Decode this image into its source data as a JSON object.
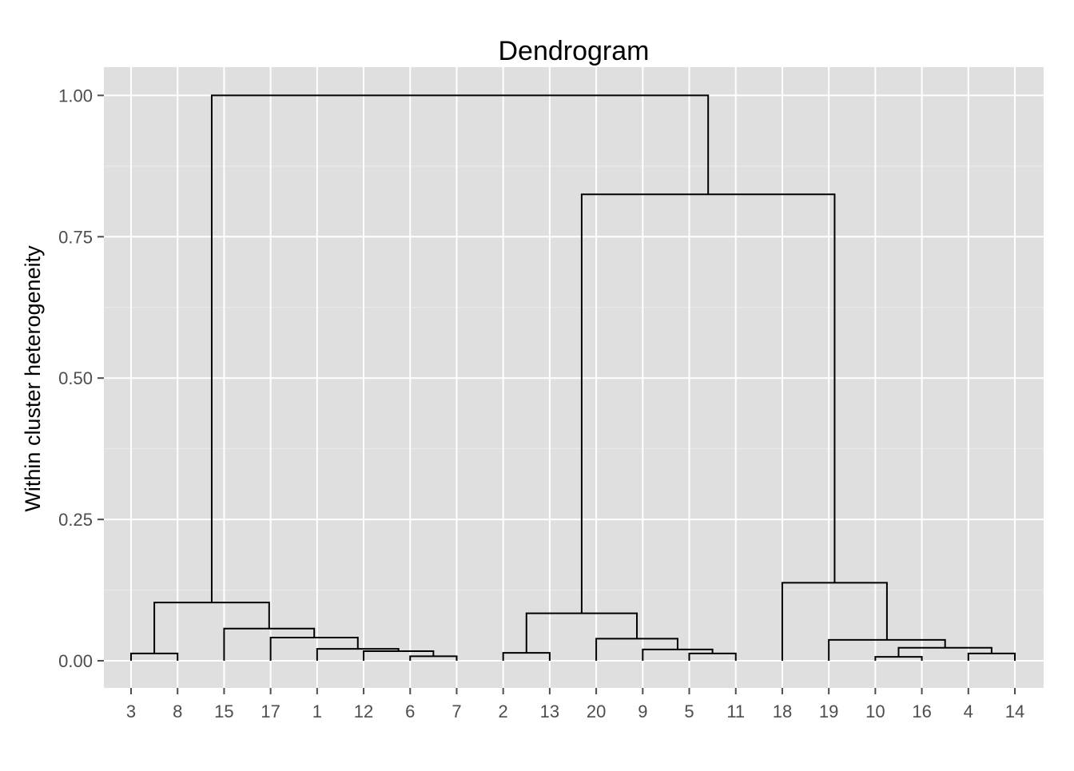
{
  "chart_data": {
    "type": "dendrogram",
    "title": "Dendrogram",
    "xlabel": "",
    "ylabel": "Within cluster heterogeneity",
    "ylim": [
      -0.048,
      1.05
    ],
    "yticks": [
      0.0,
      0.25,
      0.5,
      0.75,
      1.0
    ],
    "ytick_labels": [
      "0.00",
      "0.25",
      "0.50",
      "0.75",
      "1.00"
    ],
    "leaf_order": [
      "3",
      "8",
      "15",
      "17",
      "1",
      "12",
      "6",
      "7",
      "2",
      "13",
      "20",
      "9",
      "5",
      "11",
      "18",
      "19",
      "10",
      "16",
      "4",
      "14"
    ],
    "merges": [
      {
        "left": "3",
        "right": "8",
        "height": 0.013
      },
      {
        "left": "6",
        "right": "7",
        "height": 0.008
      },
      {
        "left": "12",
        "right": "6+7",
        "height": 0.017
      },
      {
        "left": "1",
        "right": "12+6+7",
        "height": 0.021
      },
      {
        "left": "17",
        "right": "1+12+6+7",
        "height": 0.041
      },
      {
        "left": "15",
        "right": "17+1+12+6+7",
        "height": 0.057
      },
      {
        "left": "3+8",
        "right": "15+17+1+12+6+7",
        "height": 0.103
      },
      {
        "left": "2",
        "right": "13",
        "height": 0.014
      },
      {
        "left": "5",
        "right": "11",
        "height": 0.013
      },
      {
        "left": "9",
        "right": "5+11",
        "height": 0.02
      },
      {
        "left": "20",
        "right": "9+5+11",
        "height": 0.039
      },
      {
        "left": "2+13",
        "right": "20+9+5+11",
        "height": 0.084
      },
      {
        "left": "10",
        "right": "16",
        "height": 0.007
      },
      {
        "left": "4",
        "right": "14",
        "height": 0.013
      },
      {
        "left": "10+16",
        "right": "4+14",
        "height": 0.023
      },
      {
        "left": "19",
        "right": "10+16+4+14",
        "height": 0.037
      },
      {
        "left": "18",
        "right": "19+10+16+4+14",
        "height": 0.138
      },
      {
        "left": "2+13+20+9+5+11",
        "right": "18+19+10+16+4+14",
        "height": 0.825
      },
      {
        "left": "3+8+15+17+1+12+6+7",
        "right": "2+13+20+9+5+11+18+19+10+16+4+14",
        "height": 1.0
      }
    ],
    "grid": true,
    "colors": {
      "panel_background": "#dfdfdf",
      "grid_major": "#ffffff",
      "grid_minor": "#ececec",
      "lines": "#000000",
      "tick_label": "#4d4d4d",
      "tick_mark": "#4d4d4d"
    }
  }
}
